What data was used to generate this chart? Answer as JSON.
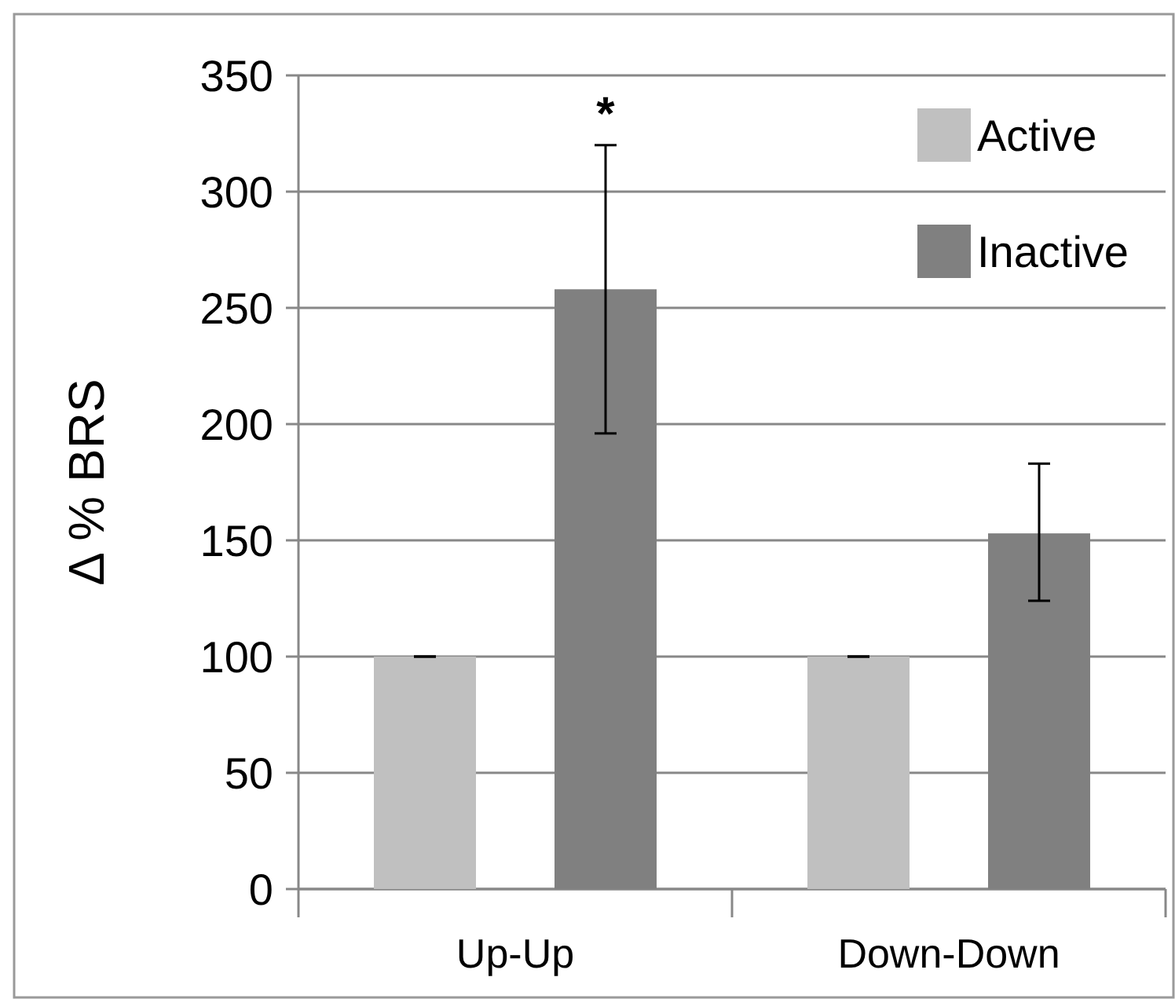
{
  "chart_data": {
    "type": "bar",
    "ylabel": "Δ % BRS",
    "categories": [
      "Up-Up",
      "Down-Down"
    ],
    "series": [
      {
        "name": "Active",
        "color": "#c0c0c0",
        "values": [
          100,
          100
        ],
        "errors": [
          0,
          0
        ]
      },
      {
        "name": "Inactive",
        "color": "#808080",
        "values": [
          258,
          153
        ],
        "errors": [
          [
            196,
            320
          ],
          [
            124,
            183
          ]
        ]
      }
    ],
    "ylim": [
      0,
      350
    ],
    "yticks": [
      0,
      50,
      100,
      150,
      200,
      250,
      300,
      350
    ],
    "grid": "y",
    "legend": "top right",
    "annotations": [
      "*"
    ]
  }
}
